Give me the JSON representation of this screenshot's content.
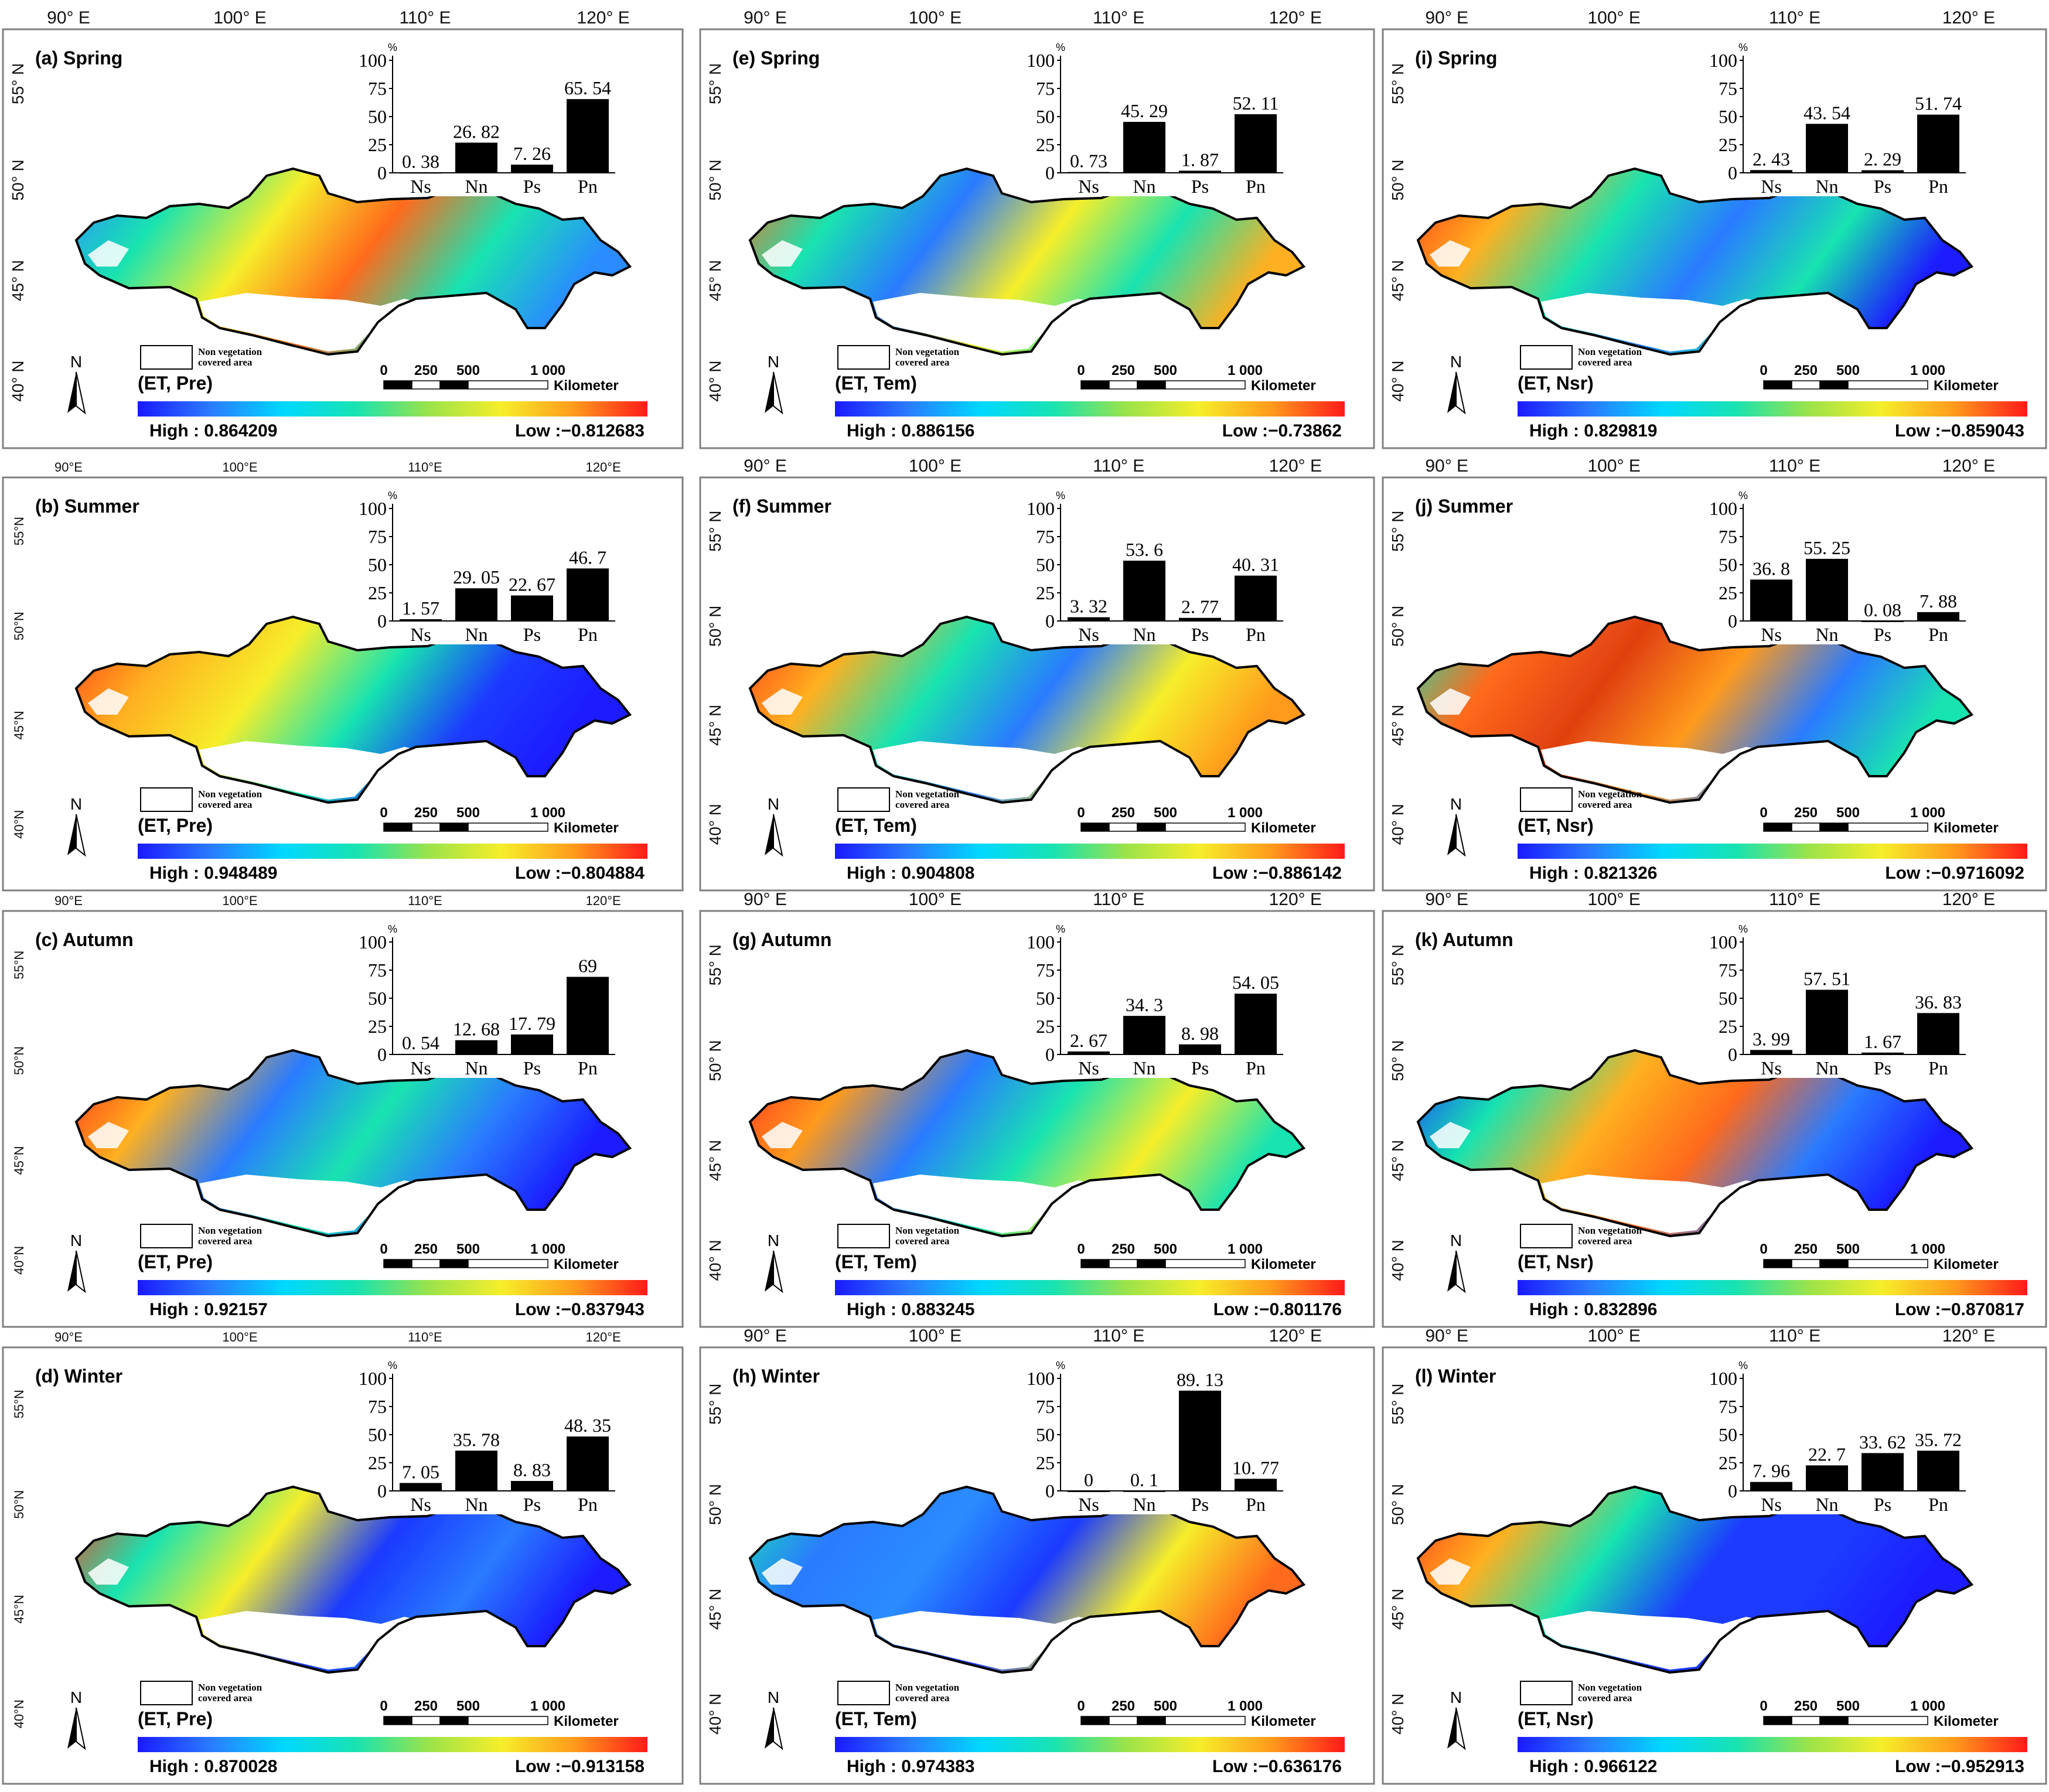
{
  "non_veg_label": [
    "Non vegetation",
    "covered area"
  ],
  "scale": {
    "ticks": [
      "0",
      "250",
      "500",
      "1 000"
    ],
    "unit": "Kilometer"
  },
  "north": "N",
  "pct_sign": "%",
  "lon_ticks": [
    [
      "90° E",
      "100° E",
      "110° E",
      "120° E"
    ],
    [
      "90°E",
      "100°E",
      "110°E",
      "120°E"
    ]
  ],
  "lat_ticks": [
    [
      "55° N",
      "50° N",
      "45° N",
      "40° N"
    ],
    [
      "55°N",
      "50°N",
      "45°N",
      "40°N"
    ]
  ],
  "palette": {
    "gradient": [
      "#1a1aff",
      "#2a7bff",
      "#00d8ff",
      "#19e3b0",
      "#9be34a",
      "#f6ee2a",
      "#ff9a1c",
      "#ff1a1a"
    ],
    "frame": "#7f7f7f",
    "bar": "#000000",
    "outline": "#000000"
  },
  "chart_data": [
    {
      "panel": "a",
      "title": "(a) Spring",
      "variable": "(ET, Pre)",
      "high": "High : 0.864209",
      "low": "Low :−0.812683",
      "type": "bar",
      "ylabel": "%",
      "ylim": [
        0,
        100
      ],
      "yticks": [
        "0",
        "25",
        "50",
        "75",
        "100"
      ],
      "categories": [
        "Ns",
        "Nn",
        "Ps",
        "Pn"
      ],
      "values": [
        0.38,
        26.82,
        7.26,
        65.54
      ],
      "labels": [
        "0. 38",
        "26. 82",
        "7. 26",
        "65. 54"
      ],
      "lon_style": 0,
      "lat_style": 0
    },
    {
      "panel": "e",
      "title": "(e) Spring",
      "variable": "(ET, Tem)",
      "high": "High : 0.886156",
      "low": "Low :−0.73862",
      "type": "bar",
      "ylabel": "%",
      "ylim": [
        0,
        100
      ],
      "yticks": [
        "0",
        "25",
        "50",
        "75",
        "100"
      ],
      "categories": [
        "Ns",
        "Nn",
        "Ps",
        "Pn"
      ],
      "values": [
        0.73,
        45.29,
        1.87,
        52.11
      ],
      "labels": [
        "0. 73",
        "45. 29",
        "1. 87",
        "52. 11"
      ],
      "lon_style": 0,
      "lat_style": 0
    },
    {
      "panel": "i",
      "title": "(i)  Spring",
      "variable": "(ET, Nsr)",
      "high": "High : 0.829819",
      "low": "Low :−0.859043",
      "type": "bar",
      "ylabel": "%",
      "ylim": [
        0,
        100
      ],
      "yticks": [
        "0",
        "25",
        "50",
        "75",
        "100"
      ],
      "categories": [
        "Ns",
        "Nn",
        "Ps",
        "Pn"
      ],
      "values": [
        2.43,
        43.54,
        2.29,
        51.74
      ],
      "labels": [
        "2. 43",
        "43. 54",
        "2. 29",
        "51. 74"
      ],
      "lon_style": 0,
      "lat_style": 0
    },
    {
      "panel": "b",
      "title": "(b) Summer",
      "variable": "(ET, Pre)",
      "high": "High : 0.948489",
      "low": "Low :−0.804884",
      "type": "bar",
      "ylabel": "%",
      "ylim": [
        0,
        100
      ],
      "yticks": [
        "0",
        "25",
        "50",
        "75",
        "100"
      ],
      "categories": [
        "Ns",
        "Nn",
        "Ps",
        "Pn"
      ],
      "values": [
        1.57,
        29.05,
        22.67,
        46.7
      ],
      "labels": [
        "1. 57",
        "29. 05",
        "22. 67",
        "46. 7"
      ],
      "lon_style": 1,
      "lat_style": 1
    },
    {
      "panel": "f",
      "title": "(f) Summer",
      "variable": "(ET, Tem)",
      "high": "High : 0.904808",
      "low": "Low :−0.886142",
      "type": "bar",
      "ylabel": "%",
      "ylim": [
        0,
        100
      ],
      "yticks": [
        "0",
        "25",
        "50",
        "75",
        "100"
      ],
      "categories": [
        "Ns",
        "Nn",
        "Ps",
        "Pn"
      ],
      "values": [
        3.32,
        53.6,
        2.77,
        40.31
      ],
      "labels": [
        "3. 32",
        "53. 6",
        "2. 77",
        "40. 31"
      ],
      "lon_style": 0,
      "lat_style": 0
    },
    {
      "panel": "j",
      "title": "(j)  Summer",
      "variable": "(ET, Nsr)",
      "high": "High : 0.821326",
      "low": "Low :−0.9716092",
      "type": "bar",
      "ylabel": "%",
      "ylim": [
        0,
        100
      ],
      "yticks": [
        "0",
        "25",
        "50",
        "75",
        "100"
      ],
      "categories": [
        "Ns",
        "Nn",
        "Ps",
        "Pn"
      ],
      "values": [
        36.8,
        55.25,
        0.08,
        7.88
      ],
      "labels": [
        "36. 8",
        "55. 25",
        "0. 08",
        "7. 88"
      ],
      "lon_style": 0,
      "lat_style": 0
    },
    {
      "panel": "c",
      "title": "(c)  Autumn",
      "variable": "(ET, Pre)",
      "high": "High : 0.92157",
      "low": "Low :−0.837943",
      "type": "bar",
      "ylabel": "%",
      "ylim": [
        0,
        100
      ],
      "yticks": [
        "0",
        "25",
        "50",
        "75",
        "100"
      ],
      "categories": [
        "Ns",
        "Nn",
        "Ps",
        "Pn"
      ],
      "values": [
        0.54,
        12.68,
        17.79,
        69
      ],
      "labels": [
        "0. 54",
        "12. 68",
        "17. 79",
        "69"
      ],
      "lon_style": 1,
      "lat_style": 1
    },
    {
      "panel": "g",
      "title": "(g)  Autumn",
      "variable": "(ET, Tem)",
      "high": "High : 0.883245",
      "low": "Low :−0.801176",
      "type": "bar",
      "ylabel": "%",
      "ylim": [
        0,
        100
      ],
      "yticks": [
        "0",
        "25",
        "50",
        "75",
        "100"
      ],
      "categories": [
        "Ns",
        "Nn",
        "Ps",
        "Pn"
      ],
      "values": [
        2.67,
        34.3,
        8.98,
        54.05
      ],
      "labels": [
        "2. 67",
        "34. 3",
        "8. 98",
        "54. 05"
      ],
      "lon_style": 0,
      "lat_style": 0
    },
    {
      "panel": "k",
      "title": "(k)  Autumn",
      "variable": "(ET, Nsr)",
      "high": "High : 0.832896",
      "low": "Low :−0.870817",
      "type": "bar",
      "ylabel": "%",
      "ylim": [
        0,
        100
      ],
      "yticks": [
        "0",
        "25",
        "50",
        "75",
        "100"
      ],
      "categories": [
        "Ns",
        "Nn",
        "Ps",
        "Pn"
      ],
      "values": [
        3.99,
        57.51,
        1.67,
        36.83
      ],
      "labels": [
        "3. 99",
        "57. 51",
        "1. 67",
        "36. 83"
      ],
      "lon_style": 0,
      "lat_style": 0
    },
    {
      "panel": "d",
      "title": "(d)   Winter",
      "variable": "(ET, Pre)",
      "high": "High : 0.870028",
      "low": "Low :−0.913158",
      "type": "bar",
      "ylabel": "%",
      "ylim": [
        0,
        100
      ],
      "yticks": [
        "0",
        "25",
        "50",
        "75",
        "100"
      ],
      "categories": [
        "Ns",
        "Nn",
        "Ps",
        "Pn"
      ],
      "values": [
        7.05,
        35.78,
        8.83,
        48.35
      ],
      "labels": [
        "7. 05",
        "35. 78",
        "8. 83",
        "48. 35"
      ],
      "lon_style": 1,
      "lat_style": 1
    },
    {
      "panel": "h",
      "title": "(h)  Winter",
      "variable": "(ET, Tem)",
      "high": "High : 0.974383",
      "low": "Low :−0.636176",
      "type": "bar",
      "ylabel": "%",
      "ylim": [
        0,
        100
      ],
      "yticks": [
        "0",
        "25",
        "50",
        "75",
        "100"
      ],
      "categories": [
        "Ns",
        "Nn",
        "Ps",
        "Pn"
      ],
      "values": [
        0,
        0.1,
        89.13,
        10.77
      ],
      "labels": [
        "0",
        "0. 1",
        "89. 13",
        "10. 77"
      ],
      "lon_style": 0,
      "lat_style": 0
    },
    {
      "panel": "l",
      "title": "(l)  Winter",
      "variable": "(ET, Nsr)",
      "high": "High : 0.966122",
      "low": "Low :−0.952913",
      "type": "bar",
      "ylabel": "%",
      "ylim": [
        0,
        100
      ],
      "yticks": [
        "0",
        "25",
        "50",
        "75",
        "100"
      ],
      "categories": [
        "Ns",
        "Nn",
        "Ps",
        "Pn"
      ],
      "values": [
        7.96,
        22.7,
        33.62,
        35.72
      ],
      "labels": [
        "7. 96",
        "22. 7",
        "33. 62",
        "35. 72"
      ],
      "lon_style": 0,
      "lat_style": 0
    }
  ]
}
